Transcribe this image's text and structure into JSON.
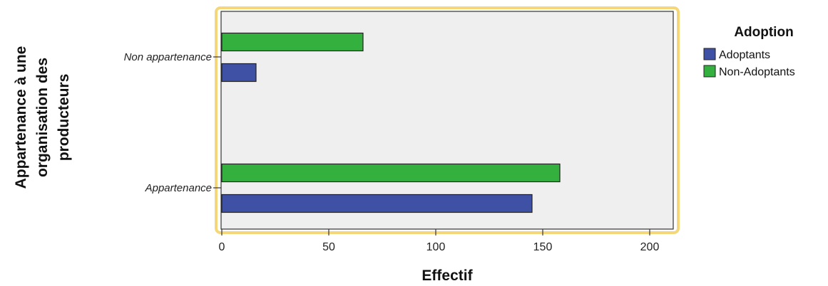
{
  "chart_data": {
    "type": "bar",
    "orientation": "horizontal",
    "categories": [
      "Non appartenance",
      "Appartenance"
    ],
    "series": [
      {
        "name": "Adoptants",
        "values": [
          16,
          145
        ],
        "color": "#3f51a5"
      },
      {
        "name": "Non-Adoptants",
        "values": [
          66,
          158
        ],
        "color": "#33b03e"
      }
    ],
    "xlabel": "Effectif",
    "ylabel_lines": [
      "Appartenance à une",
      "organisation des",
      "producteurs"
    ],
    "xlim": [
      0,
      212
    ],
    "xticks": [
      "0",
      "50",
      "100",
      "150",
      "200"
    ],
    "grid": false,
    "legend": {
      "title": "Adoption",
      "position": "right"
    },
    "colors": {
      "plot_background": "#efefef",
      "frame_border": "#f5d77a"
    }
  }
}
